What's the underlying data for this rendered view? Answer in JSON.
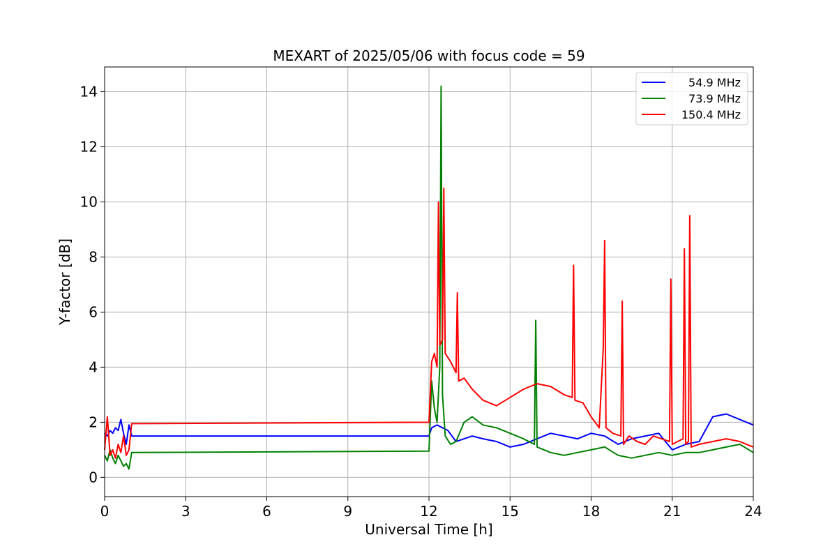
{
  "chart_data": {
    "type": "line",
    "title": "MEXART of 2025/05/06 with focus code = 59",
    "xlabel": "Universal Time [h]",
    "ylabel": "Y-factor [dB]",
    "xlim": [
      0,
      24
    ],
    "ylim": [
      -0.7,
      14.9
    ],
    "xticks": [
      0,
      3,
      6,
      9,
      12,
      15,
      18,
      21,
      24
    ],
    "yticks": [
      0,
      2,
      4,
      6,
      8,
      10,
      12,
      14
    ],
    "grid": true,
    "legend_position": "top-right",
    "series": [
      {
        "name": "54.9 MHz",
        "color": "#0000ff",
        "x": [
          0.0,
          0.1,
          0.2,
          0.3,
          0.4,
          0.5,
          0.6,
          0.7,
          0.8,
          0.9,
          1.0,
          12.0,
          12.1,
          12.3,
          12.5,
          12.7,
          13.0,
          13.3,
          13.6,
          14.0,
          14.5,
          15.0,
          15.5,
          16.0,
          16.5,
          17.0,
          17.5,
          18.0,
          18.5,
          19.0,
          19.5,
          20.0,
          20.5,
          21.0,
          21.5,
          22.0,
          22.5,
          23.0,
          23.5,
          24.0
        ],
        "y": [
          1.6,
          1.5,
          1.7,
          1.6,
          1.8,
          1.7,
          2.1,
          1.6,
          1.2,
          1.9,
          1.5,
          1.5,
          1.8,
          1.9,
          1.8,
          1.7,
          1.3,
          1.4,
          1.5,
          1.4,
          1.3,
          1.1,
          1.2,
          1.4,
          1.6,
          1.5,
          1.4,
          1.6,
          1.5,
          1.2,
          1.4,
          1.5,
          1.6,
          1.0,
          1.2,
          1.3,
          2.2,
          2.3,
          2.1,
          1.9
        ]
      },
      {
        "name": "73.9 MHz",
        "color": "#008000",
        "x": [
          0.0,
          0.1,
          0.2,
          0.3,
          0.4,
          0.5,
          0.6,
          0.7,
          0.8,
          0.9,
          1.0,
          12.0,
          12.1,
          12.2,
          12.3,
          12.4,
          12.45,
          12.5,
          12.6,
          12.8,
          13.0,
          13.3,
          13.6,
          14.0,
          14.5,
          15.0,
          15.5,
          15.9,
          15.95,
          16.0,
          16.5,
          17.0,
          17.5,
          18.0,
          18.5,
          19.0,
          19.5,
          20.0,
          20.5,
          21.0,
          21.5,
          22.0,
          22.5,
          23.0,
          23.5,
          24.0
        ],
        "y": [
          0.8,
          0.6,
          1.0,
          0.7,
          0.5,
          0.8,
          0.6,
          0.4,
          0.5,
          0.3,
          0.9,
          0.95,
          3.5,
          2.5,
          2.0,
          4.0,
          14.2,
          3.0,
          1.5,
          1.2,
          1.3,
          2.0,
          2.2,
          1.9,
          1.8,
          1.6,
          1.4,
          1.2,
          5.7,
          1.1,
          0.9,
          0.8,
          0.9,
          1.0,
          1.1,
          0.8,
          0.7,
          0.8,
          0.9,
          0.8,
          0.9,
          0.9,
          1.0,
          1.1,
          1.2,
          0.9
        ]
      },
      {
        "name": "150.4 MHz",
        "color": "#ff0000",
        "x": [
          0.0,
          0.1,
          0.2,
          0.3,
          0.4,
          0.5,
          0.6,
          0.7,
          0.8,
          0.9,
          1.0,
          12.0,
          12.1,
          12.2,
          12.3,
          12.35,
          12.4,
          12.5,
          12.55,
          12.6,
          12.8,
          13.0,
          13.05,
          13.1,
          13.3,
          13.6,
          14.0,
          14.5,
          15.0,
          15.5,
          16.0,
          16.5,
          17.0,
          17.3,
          17.35,
          17.4,
          17.7,
          18.0,
          18.3,
          18.45,
          18.5,
          18.55,
          18.8,
          19.1,
          19.15,
          19.2,
          19.4,
          19.7,
          20.0,
          20.3,
          20.6,
          20.9,
          20.95,
          21.0,
          21.2,
          21.4,
          21.45,
          21.5,
          21.6,
          21.65,
          21.7,
          22.0,
          22.5,
          23.0,
          23.5,
          24.0
        ],
        "y": [
          1.0,
          2.2,
          0.8,
          1.0,
          0.7,
          1.2,
          0.9,
          1.5,
          0.8,
          1.0,
          1.95,
          2.0,
          4.2,
          4.5,
          4.0,
          10.0,
          4.8,
          5.0,
          10.5,
          4.5,
          4.2,
          3.8,
          6.7,
          3.5,
          3.6,
          3.2,
          2.8,
          2.6,
          2.9,
          3.2,
          3.4,
          3.3,
          3.0,
          2.9,
          7.7,
          2.8,
          2.7,
          2.2,
          1.8,
          4.7,
          8.6,
          1.8,
          1.6,
          1.5,
          6.4,
          1.2,
          1.5,
          1.3,
          1.2,
          1.5,
          1.4,
          1.3,
          7.2,
          1.2,
          1.3,
          1.4,
          8.3,
          1.2,
          1.3,
          9.5,
          1.1,
          1.2,
          1.3,
          1.4,
          1.3,
          1.1
        ]
      }
    ]
  }
}
